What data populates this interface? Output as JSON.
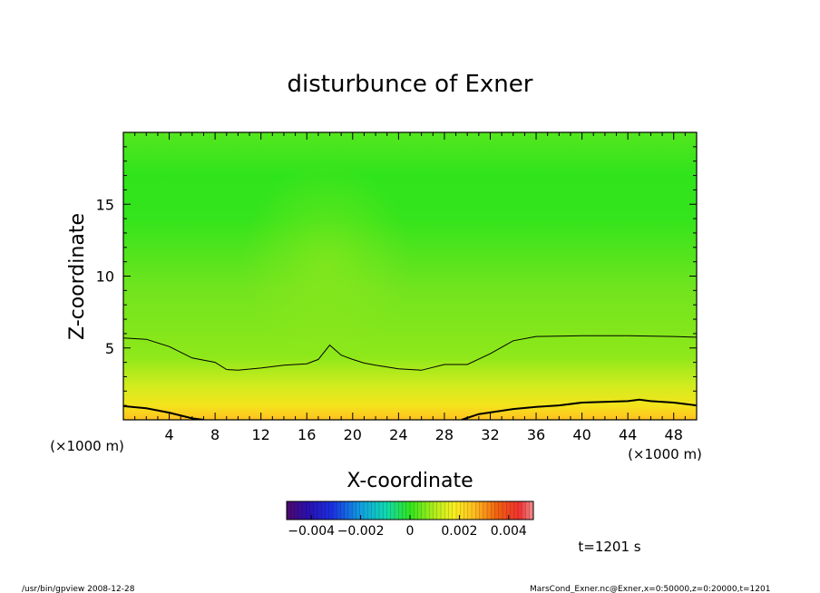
{
  "chart_data": {
    "type": "heatmap",
    "title": "disturbunce of Exner",
    "xlabel": "X-coordinate",
    "ylabel": "Z-coordinate",
    "x_unit_left": "(×1000 m)",
    "x_unit_right": "(×1000 m)",
    "xlim": [
      0,
      50
    ],
    "ylim": [
      0,
      20
    ],
    "x_ticks": [
      4,
      8,
      12,
      16,
      20,
      24,
      28,
      32,
      36,
      40,
      44,
      48
    ],
    "y_ticks": [
      5,
      10,
      15
    ],
    "colorbar": {
      "range": [
        -0.005,
        0.005
      ],
      "tick_labels": [
        "−0.004",
        "−0.002",
        "0",
        "0.002",
        "0.004"
      ],
      "tick_values": [
        -0.004,
        -0.002,
        0,
        0.002,
        0.004
      ]
    },
    "contours": [
      {
        "name": "upper",
        "points": [
          [
            0,
            5.7
          ],
          [
            2,
            5.6
          ],
          [
            4,
            5.1
          ],
          [
            6,
            4.3
          ],
          [
            8,
            4.0
          ],
          [
            9,
            3.5
          ],
          [
            10,
            3.45
          ],
          [
            12,
            3.6
          ],
          [
            14,
            3.8
          ],
          [
            16,
            3.9
          ],
          [
            17,
            4.2
          ],
          [
            18,
            5.2
          ],
          [
            19,
            4.5
          ],
          [
            20,
            4.2
          ],
          [
            21,
            3.95
          ],
          [
            22,
            3.8
          ],
          [
            24,
            3.55
          ],
          [
            26,
            3.45
          ],
          [
            28,
            3.85
          ],
          [
            30,
            3.85
          ],
          [
            32,
            4.6
          ],
          [
            34,
            5.5
          ],
          [
            36,
            5.8
          ],
          [
            40,
            5.85
          ],
          [
            44,
            5.85
          ],
          [
            48,
            5.8
          ],
          [
            50,
            5.75
          ]
        ]
      },
      {
        "name": "lower-left",
        "points": [
          [
            0,
            0.95
          ],
          [
            2,
            0.8
          ],
          [
            4,
            0.5
          ],
          [
            6,
            0.1
          ],
          [
            7,
            0.0
          ]
        ]
      },
      {
        "name": "lower-right",
        "points": [
          [
            29.5,
            0.0
          ],
          [
            31,
            0.4
          ],
          [
            34,
            0.75
          ],
          [
            36,
            0.9
          ],
          [
            38,
            1.0
          ],
          [
            40,
            1.2
          ],
          [
            44,
            1.3
          ],
          [
            45,
            1.4
          ],
          [
            46,
            1.3
          ],
          [
            48,
            1.2
          ],
          [
            50,
            1.0
          ]
        ]
      }
    ]
  },
  "footer": {
    "time_label": "t=1201 s",
    "left": "/usr/bin/gpview   2008-12-28",
    "right": "MarsCond_Exner.nc@Exner,x=0:50000,z=0:20000,t=1201"
  }
}
